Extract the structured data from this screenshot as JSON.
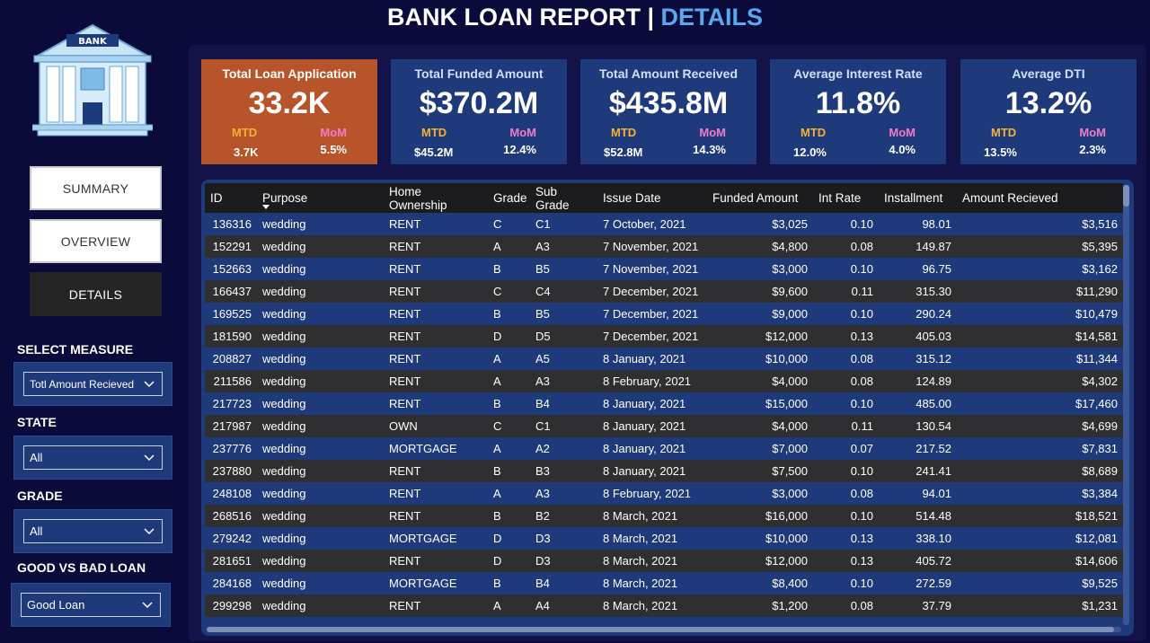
{
  "title": {
    "part1": "BANK LOAN REPORT | ",
    "part2": "DETAILS"
  },
  "logo": {
    "sign": "BANK"
  },
  "nav": {
    "summary": "SUMMARY",
    "overview": "OVERVIEW",
    "details": "DETAILS"
  },
  "filters": {
    "measure": {
      "label": "SELECT MEASURE",
      "value": "Totl Amount Recieved"
    },
    "state": {
      "label": "STATE",
      "value": "All"
    },
    "grade": {
      "label": "GRADE",
      "value": "All"
    },
    "loan": {
      "label": "GOOD VS BAD LOAN",
      "value": "Good Loan"
    }
  },
  "kpis": {
    "apps": {
      "title": "Total Loan Application",
      "value": "33.2K",
      "mtd_label": "MTD",
      "mom_label": "MoM",
      "mtd": "3.7K",
      "mom": "5.5%"
    },
    "funded": {
      "title": "Total Funded Amount",
      "value": "$370.2M",
      "mtd_label": "MTD",
      "mom_label": "MoM",
      "mtd": "$45.2M",
      "mom": "12.4%"
    },
    "received": {
      "title": "Total Amount Received",
      "value": "$435.8M",
      "mtd_label": "MTD",
      "mom_label": "MoM",
      "mtd": "$52.8M",
      "mom": "14.3%"
    },
    "interest": {
      "title": "Average Interest Rate",
      "value": "11.8%",
      "mtd_label": "MTD",
      "mom_label": "MoM",
      "mtd": "12.0%",
      "mom": "4.0%"
    },
    "dti": {
      "title": "Average DTI",
      "value": "13.2%",
      "mtd_label": "MTD",
      "mom_label": "MoM",
      "mtd": "13.5%",
      "mom": "2.3%"
    }
  },
  "colors": {
    "accent": "#5aa9f0",
    "card": "#1f3a7a",
    "highlight_card": "#b8542a",
    "mtd": "#f2b233",
    "mom": "#f17bc8"
  },
  "table": {
    "columns": [
      "ID",
      "Purpose",
      "Home Ownership",
      "Grade",
      "Sub Grade",
      "Issue Date",
      "Funded Amount",
      "Int Rate",
      "Installment",
      "Amount Recieved"
    ],
    "rows": [
      [
        "136316",
        "wedding",
        "RENT",
        "C",
        "C1",
        "7 October, 2021",
        "$3,025",
        "0.10",
        "98.01",
        "$3,516"
      ],
      [
        "152291",
        "wedding",
        "RENT",
        "A",
        "A3",
        "7 November, 2021",
        "$4,800",
        "0.08",
        "149.87",
        "$5,395"
      ],
      [
        "152663",
        "wedding",
        "RENT",
        "B",
        "B5",
        "7 November, 2021",
        "$3,000",
        "0.10",
        "96.75",
        "$3,162"
      ],
      [
        "166437",
        "wedding",
        "RENT",
        "C",
        "C4",
        "7 December, 2021",
        "$9,600",
        "0.11",
        "315.30",
        "$11,290"
      ],
      [
        "169525",
        "wedding",
        "RENT",
        "B",
        "B5",
        "7 December, 2021",
        "$9,000",
        "0.10",
        "290.24",
        "$10,479"
      ],
      [
        "181590",
        "wedding",
        "RENT",
        "D",
        "D5",
        "7 December, 2021",
        "$12,000",
        "0.13",
        "405.03",
        "$14,581"
      ],
      [
        "208827",
        "wedding",
        "RENT",
        "A",
        "A5",
        "8 January, 2021",
        "$10,000",
        "0.08",
        "315.12",
        "$11,344"
      ],
      [
        "211586",
        "wedding",
        "RENT",
        "A",
        "A3",
        "8 February, 2021",
        "$4,000",
        "0.08",
        "124.89",
        "$4,302"
      ],
      [
        "217723",
        "wedding",
        "RENT",
        "B",
        "B4",
        "8 January, 2021",
        "$15,000",
        "0.10",
        "485.00",
        "$17,460"
      ],
      [
        "217987",
        "wedding",
        "OWN",
        "C",
        "C1",
        "8 January, 2021",
        "$4,000",
        "0.11",
        "130.54",
        "$4,699"
      ],
      [
        "237776",
        "wedding",
        "MORTGAGE",
        "A",
        "A2",
        "8 January, 2021",
        "$7,000",
        "0.07",
        "217.52",
        "$7,831"
      ],
      [
        "237880",
        "wedding",
        "RENT",
        "B",
        "B3",
        "8 January, 2021",
        "$7,500",
        "0.10",
        "241.41",
        "$8,689"
      ],
      [
        "248108",
        "wedding",
        "RENT",
        "A",
        "A3",
        "8 February, 2021",
        "$3,000",
        "0.08",
        "94.01",
        "$3,384"
      ],
      [
        "268516",
        "wedding",
        "RENT",
        "B",
        "B2",
        "8 March, 2021",
        "$16,000",
        "0.10",
        "514.48",
        "$18,521"
      ],
      [
        "279242",
        "wedding",
        "MORTGAGE",
        "D",
        "D3",
        "8 March, 2021",
        "$10,000",
        "0.13",
        "338.10",
        "$12,081"
      ],
      [
        "281651",
        "wedding",
        "RENT",
        "D",
        "D3",
        "8 March, 2021",
        "$12,000",
        "0.13",
        "405.72",
        "$14,606"
      ],
      [
        "284168",
        "wedding",
        "MORTGAGE",
        "B",
        "B4",
        "8 March, 2021",
        "$8,400",
        "0.10",
        "272.59",
        "$9,525"
      ],
      [
        "299298",
        "wedding",
        "RENT",
        "A",
        "A4",
        "8 March, 2021",
        "$1,200",
        "0.08",
        "37.79",
        "$1,231"
      ]
    ]
  }
}
